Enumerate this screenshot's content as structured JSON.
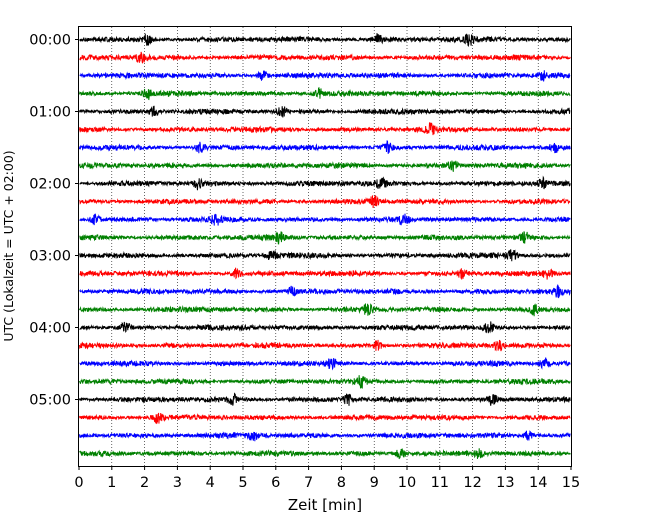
{
  "chart_data": {
    "type": "line",
    "title": "",
    "xlabel": "Zeit  [min]",
    "ylabel": "UTC (Lokalzeit = UTC + 02:00)",
    "xlim": [
      0,
      15
    ],
    "x_ticks": [
      "0",
      "1",
      "2",
      "3",
      "4",
      "5",
      "6",
      "7",
      "8",
      "9",
      "10",
      "11",
      "12",
      "13",
      "14",
      "15"
    ],
    "y_tick_labels": [
      "00:00",
      "01:00",
      "02:00",
      "03:00",
      "04:00",
      "05:00"
    ],
    "rows_per_hour": 4,
    "trace_minutes": 15,
    "trace_colors": [
      "#000000",
      "#ff0000",
      "#0000ff",
      "#008000"
    ],
    "vertical_grid": true,
    "grid_style": "dotted",
    "traces": [
      {
        "start": "00:00",
        "color": "#000000",
        "bursts": [
          2.1,
          9.1,
          11.9
        ]
      },
      {
        "start": "00:15",
        "color": "#ff0000",
        "bursts": [
          1.9
        ]
      },
      {
        "start": "00:30",
        "color": "#0000ff",
        "bursts": [
          5.6,
          14.1
        ]
      },
      {
        "start": "00:45",
        "color": "#008000",
        "bursts": [
          2.1,
          7.3
        ]
      },
      {
        "start": "01:00",
        "color": "#000000",
        "bursts": [
          2.3,
          6.2
        ]
      },
      {
        "start": "01:15",
        "color": "#ff0000",
        "bursts": [
          10.7
        ]
      },
      {
        "start": "01:30",
        "color": "#0000ff",
        "bursts": [
          3.7,
          9.4,
          14.5
        ]
      },
      {
        "start": "01:45",
        "color": "#008000",
        "bursts": [
          11.4
        ]
      },
      {
        "start": "02:00",
        "color": "#000000",
        "bursts": [
          3.6,
          9.2,
          14.1
        ]
      },
      {
        "start": "02:15",
        "color": "#ff0000",
        "bursts": [
          9.0
        ]
      },
      {
        "start": "02:30",
        "color": "#0000ff",
        "bursts": [
          0.5,
          4.2,
          9.9
        ]
      },
      {
        "start": "02:45",
        "color": "#008000",
        "bursts": [
          6.1,
          13.6
        ]
      },
      {
        "start": "03:00",
        "color": "#000000",
        "bursts": [
          5.9,
          13.2
        ]
      },
      {
        "start": "03:15",
        "color": "#ff0000",
        "bursts": [
          4.8,
          11.7,
          14.3
        ]
      },
      {
        "start": "03:30",
        "color": "#0000ff",
        "bursts": [
          6.5,
          14.6
        ]
      },
      {
        "start": "03:45",
        "color": "#008000",
        "bursts": [
          8.8,
          13.9
        ]
      },
      {
        "start": "04:00",
        "color": "#000000",
        "bursts": [
          1.4,
          12.5
        ]
      },
      {
        "start": "04:15",
        "color": "#ff0000",
        "bursts": [
          9.1,
          12.8
        ]
      },
      {
        "start": "04:30",
        "color": "#0000ff",
        "bursts": [
          7.7,
          14.2
        ]
      },
      {
        "start": "04:45",
        "color": "#008000",
        "bursts": [
          8.6
        ]
      },
      {
        "start": "05:00",
        "color": "#000000",
        "bursts": [
          4.7,
          8.2,
          12.6
        ]
      },
      {
        "start": "05:15",
        "color": "#ff0000",
        "bursts": [
          2.4
        ]
      },
      {
        "start": "05:30",
        "color": "#0000ff",
        "bursts": [
          5.3,
          13.7
        ]
      },
      {
        "start": "05:45",
        "color": "#008000",
        "bursts": [
          9.8,
          12.2
        ]
      }
    ]
  }
}
